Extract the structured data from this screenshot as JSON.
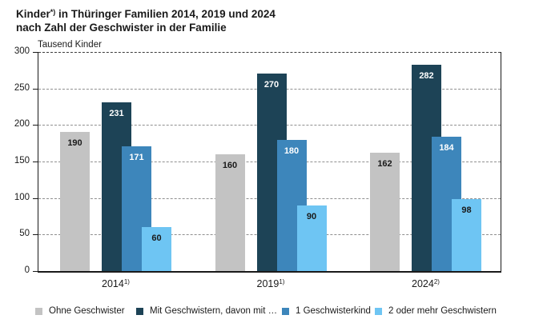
{
  "title": {
    "line1_prefix": "Kinder",
    "line1_sup": "*)",
    "line1_rest": " in Thüringer Familien 2014, 2019 und 2024",
    "line2": "nach Zahl der Geschwister in der Familie"
  },
  "chart_data": {
    "type": "bar",
    "title": "Kinder*) in Thüringer Familien 2014, 2019 und 2024 nach Zahl der Geschwister in der Familie",
    "unit_label": "Tausend Kinder",
    "ylim": [
      0,
      300
    ],
    "yticks": [
      0,
      50,
      100,
      150,
      200,
      250,
      300
    ],
    "grid": "horizontal dashed lines at 50–300",
    "legend_position": "bottom",
    "categories": [
      {
        "label": "2014",
        "footnote_mark": "1)"
      },
      {
        "label": "2019",
        "footnote_mark": "1)"
      },
      {
        "label": "2024",
        "footnote_mark": "2)"
      }
    ],
    "series": [
      {
        "name": "Ohne Geschwister",
        "color": "#c3c3c3",
        "label_color": "#1a1a1a",
        "values": [
          190,
          160,
          162
        ]
      },
      {
        "name": "Mit Geschwistern, davon mit …",
        "color": "#1d4356",
        "label_color": "#ffffff",
        "values": [
          231,
          270,
          282
        ]
      },
      {
        "name": "1 Geschwisterkind",
        "color": "#3d86bb",
        "label_color": "#ffffff",
        "values": [
          171,
          180,
          184
        ]
      },
      {
        "name": "2 oder mehr Geschwistern",
        "color": "#6ec5f3",
        "label_color": "#1a1a1a",
        "values": [
          60,
          90,
          98
        ]
      }
    ]
  }
}
